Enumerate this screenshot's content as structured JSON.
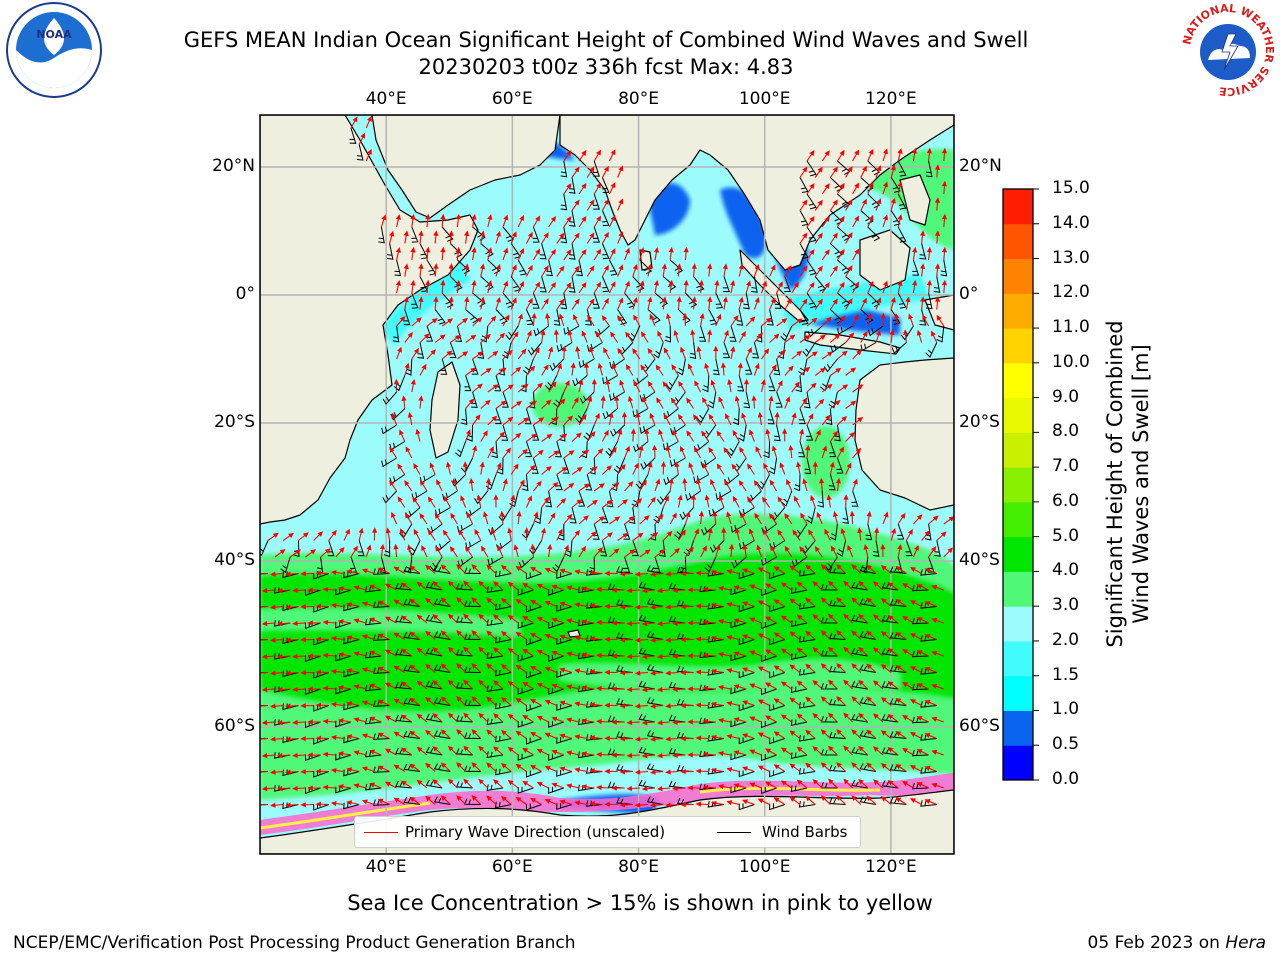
{
  "title": {
    "line1": "GEFS MEAN Indian Ocean Significant Height of Combined Wind Waves and Swell",
    "line2": "20230203 t00z 336h fcst   Max: 4.83"
  },
  "logos": {
    "left": {
      "name": "noaa-logo",
      "text": "NOAA"
    },
    "right": {
      "name": "national-weather-service-logo",
      "text": "NATIONAL WEATHER SERVICE"
    }
  },
  "axes": {
    "lon_ticks": [
      "40°E",
      "60°E",
      "80°E",
      "100°E",
      "120°E"
    ],
    "lon_values": [
      40,
      60,
      80,
      100,
      120
    ],
    "lat_ticks": [
      "20°N",
      "0°",
      "20°S",
      "40°S",
      "60°S"
    ],
    "lat_values": [
      20,
      0,
      -20,
      -40,
      -60
    ],
    "extent": {
      "lon_min": 20,
      "lon_max": 130,
      "lat_min": -75,
      "lat_max": 28
    }
  },
  "colorbar": {
    "label_line1": "Significant Height of Combined",
    "label_line2": "Wind Waves and Swell [m]",
    "ticks": [
      "0.0",
      "0.5",
      "1.0",
      "1.5",
      "2.0",
      "3.0",
      "4.0",
      "5.0",
      "6.0",
      "7.0",
      "8.0",
      "9.0",
      "10.0",
      "11.0",
      "12.0",
      "13.0",
      "14.0",
      "15.0"
    ],
    "colors": [
      "#0000ff",
      "#0a64f0",
      "#00ffff",
      "#40fcfc",
      "#9cfcfc",
      "#50f878",
      "#00e600",
      "#44ee00",
      "#88f000",
      "#c8f000",
      "#e8f800",
      "#ffff00",
      "#ffd200",
      "#ffac00",
      "#ff8200",
      "#ff5400",
      "#ff1e00"
    ]
  },
  "legend": {
    "wave_label": "Primary Wave Direction (unscaled)",
    "wave_color": "#ff0000",
    "barb_label": "Wind Barbs",
    "barb_color": "#000000"
  },
  "colors": {
    "land": "#efefdf",
    "grid": "#b4b4b4",
    "coast": "#000000"
  },
  "note": "Sea Ice Concentration > 15% is shown in pink to yellow",
  "footer": {
    "left": "NCEP/EMC/Verification Post Processing Product Generation Branch",
    "right_date": "05 Feb 2023 on ",
    "right_host": "Hera"
  }
}
